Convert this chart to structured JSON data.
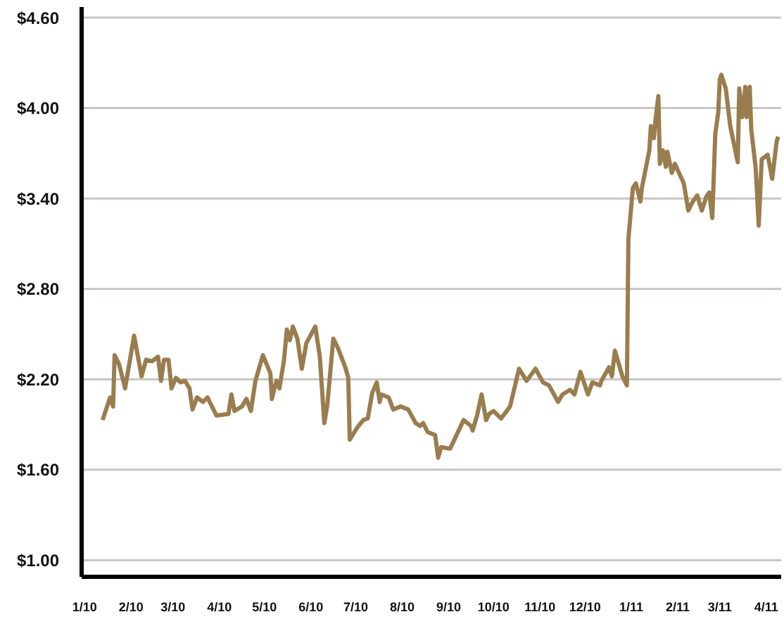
{
  "chart_data": {
    "type": "line",
    "x": [
      "2010-01-13",
      "2010-01-18",
      "2010-01-20",
      "2010-01-21",
      "2010-01-24",
      "2010-01-28",
      "2010-02-03",
      "2010-02-08",
      "2010-02-11",
      "2010-02-15",
      "2010-02-19",
      "2010-02-21",
      "2010-02-23",
      "2010-02-26",
      "2010-02-28",
      "2010-03-03",
      "2010-03-06",
      "2010-03-09",
      "2010-03-12",
      "2010-03-14",
      "2010-03-17",
      "2010-03-21",
      "2010-03-24",
      "2010-03-30",
      "2010-04-07",
      "2010-04-09",
      "2010-04-11",
      "2010-04-16",
      "2010-04-19",
      "2010-04-22",
      "2010-04-25",
      "2010-04-30",
      "2010-05-05",
      "2010-05-06",
      "2010-05-09",
      "2010-05-11",
      "2010-05-14",
      "2010-05-16",
      "2010-05-18",
      "2010-05-20",
      "2010-05-23",
      "2010-05-26",
      "2010-05-29",
      "2010-06-04",
      "2010-06-07",
      "2010-06-10",
      "2010-06-12",
      "2010-06-16",
      "2010-06-19",
      "2010-06-24",
      "2010-06-26",
      "2010-06-27",
      "2010-07-02",
      "2010-07-06",
      "2010-07-09",
      "2010-07-12",
      "2010-07-15",
      "2010-07-17",
      "2010-07-18",
      "2010-07-23",
      "2010-07-26",
      "2010-07-31",
      "2010-08-05",
      "2010-08-10",
      "2010-08-13",
      "2010-08-15",
      "2010-08-18",
      "2010-08-23",
      "2010-08-25",
      "2010-08-27",
      "2010-09-02",
      "2010-09-11",
      "2010-09-16",
      "2010-09-17",
      "2010-09-20",
      "2010-09-23",
      "2010-09-26",
      "2010-09-28",
      "2010-10-01",
      "2010-10-06",
      "2010-10-12",
      "2010-10-18",
      "2010-10-23",
      "2010-10-29",
      "2010-11-03",
      "2010-11-07",
      "2010-11-13",
      "2010-11-16",
      "2010-11-21",
      "2010-11-24",
      "2010-11-28",
      "2010-12-03",
      "2010-12-06",
      "2010-12-11",
      "2010-12-12",
      "2010-12-17",
      "2010-12-19",
      "2010-12-21",
      "2010-12-26",
      "2010-12-29",
      "2010-12-30",
      "2011-01-02",
      "2011-01-04",
      "2011-01-07",
      "2011-01-08",
      "2011-01-13",
      "2011-01-14",
      "2011-01-16",
      "2011-01-17",
      "2011-01-19",
      "2011-01-20",
      "2011-01-22",
      "2011-01-24",
      "2011-01-25",
      "2011-01-28",
      "2011-01-30",
      "2011-02-05",
      "2011-02-08",
      "2011-02-11",
      "2011-02-14",
      "2011-02-17",
      "2011-02-20",
      "2011-02-22",
      "2011-02-24",
      "2011-02-26",
      "2011-02-28",
      "2011-03-01",
      "2011-03-02",
      "2011-03-05",
      "2011-03-08",
      "2011-03-13",
      "2011-03-14",
      "2011-03-16",
      "2011-03-18",
      "2011-03-19",
      "2011-03-21",
      "2011-03-22",
      "2011-03-25",
      "2011-03-27",
      "2011-03-29",
      "2011-04-02",
      "2011-04-05",
      "2011-04-08",
      "2011-04-09"
    ],
    "series": [
      {
        "color": "#9a7d4f",
        "values": [
          1.93,
          2.08,
          2.02,
          2.36,
          2.3,
          2.14,
          2.49,
          2.22,
          2.33,
          2.32,
          2.35,
          2.19,
          2.33,
          2.33,
          2.14,
          2.21,
          2.18,
          2.19,
          2.14,
          2.0,
          2.08,
          2.05,
          2.08,
          1.96,
          1.97,
          2.1,
          1.99,
          2.02,
          2.07,
          1.99,
          2.19,
          2.36,
          2.24,
          2.07,
          2.19,
          2.14,
          2.32,
          2.53,
          2.46,
          2.55,
          2.47,
          2.27,
          2.44,
          2.55,
          2.35,
          1.91,
          2.03,
          2.47,
          2.41,
          2.28,
          2.21,
          1.8,
          1.88,
          1.93,
          1.94,
          2.11,
          2.18,
          2.05,
          2.1,
          2.08,
          2.0,
          2.02,
          2.0,
          1.91,
          1.89,
          1.91,
          1.85,
          1.83,
          1.68,
          1.75,
          1.74,
          1.93,
          1.89,
          1.86,
          1.96,
          2.1,
          1.93,
          1.97,
          1.99,
          1.94,
          2.02,
          2.27,
          2.19,
          2.27,
          2.18,
          2.16,
          2.05,
          2.1,
          2.13,
          2.1,
          2.25,
          2.1,
          2.18,
          2.16,
          2.19,
          2.28,
          2.22,
          2.39,
          2.22,
          2.16,
          3.13,
          3.47,
          3.5,
          3.38,
          3.47,
          3.72,
          3.88,
          3.8,
          3.91,
          4.08,
          3.63,
          3.72,
          3.61,
          3.71,
          3.57,
          3.63,
          3.5,
          3.32,
          3.38,
          3.42,
          3.32,
          3.41,
          3.44,
          3.27,
          3.83,
          3.97,
          4.19,
          4.22,
          4.13,
          3.88,
          3.64,
          4.13,
          3.94,
          4.14,
          3.94,
          4.14,
          3.86,
          3.6,
          3.22,
          3.66,
          3.69,
          3.53,
          3.78,
          3.81
        ]
      }
    ],
    "xlim": [
      "2009-12-30",
      "2011-04-11"
    ],
    "xticks": [
      {
        "value": "2010-01",
        "label": "1/10"
      },
      {
        "value": "2010-02",
        "label": "2/10"
      },
      {
        "value": "2010-03",
        "label": "3/10"
      },
      {
        "value": "2010-04",
        "label": "4/10"
      },
      {
        "value": "2010-05",
        "label": "5/10"
      },
      {
        "value": "2010-06",
        "label": "6/10"
      },
      {
        "value": "2010-07",
        "label": "7/10"
      },
      {
        "value": "2010-08",
        "label": "8/10"
      },
      {
        "value": "2010-09",
        "label": "9/10"
      },
      {
        "value": "2010-10",
        "label": "10/10"
      },
      {
        "value": "2010-11",
        "label": "11/10"
      },
      {
        "value": "2010-12",
        "label": "12/10"
      },
      {
        "value": "2011-01",
        "label": "1/11"
      },
      {
        "value": "2011-02",
        "label": "2/11"
      },
      {
        "value": "2011-03",
        "label": "3/11"
      },
      {
        "value": "2011-04",
        "label": "4/11"
      }
    ],
    "ylim": [
      0.89,
      4.67
    ],
    "yticks": [
      {
        "value": 1.0,
        "label": "$1.00"
      },
      {
        "value": 1.6,
        "label": "$1.60"
      },
      {
        "value": 2.2,
        "label": "$2.20"
      },
      {
        "value": 2.8,
        "label": "$2.80"
      },
      {
        "value": 3.4,
        "label": "$3.40"
      },
      {
        "value": 4.0,
        "label": "$4.00"
      },
      {
        "value": 4.6,
        "label": "$4.60"
      }
    ],
    "grid": "y"
  }
}
